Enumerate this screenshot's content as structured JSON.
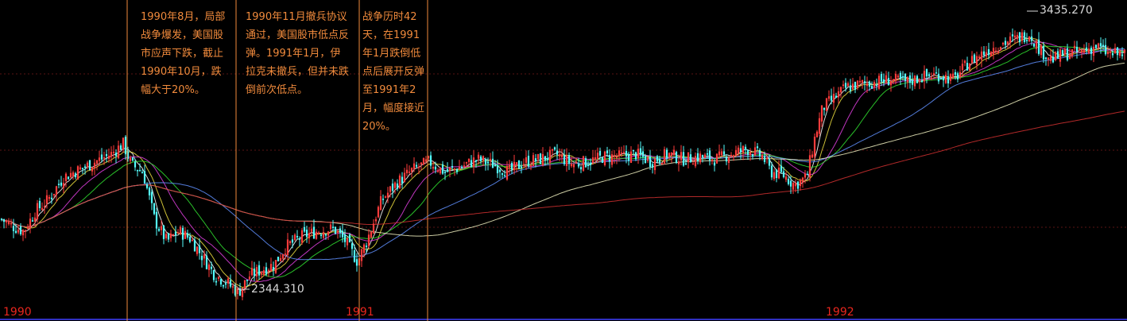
{
  "chart_data": {
    "type": "candlestick",
    "x_labels": [
      "1990",
      "1991",
      "1992"
    ],
    "annotations": [
      {
        "text": "1990年8月，局部战争爆发，美国股市应声下跌，截止1990年10月，跌幅大于20%。"
      },
      {
        "text": "1990年11月撤兵协议通过，美国股市低点反弹。1991年1月，伊拉克未撤兵，但并未跌倒前次低点。"
      },
      {
        "text": "战争历时42天，在1991年1月跌倒低点后展开反弹至1991年2月，幅度接近20%。"
      }
    ],
    "price_labels": {
      "low": "2344.310",
      "high": "3435.270"
    },
    "ylim": [
      2250,
      3500
    ],
    "grid": true,
    "path_points": [
      [
        0,
        2650
      ],
      [
        15,
        2620
      ],
      [
        30,
        2600
      ],
      [
        45,
        2680
      ],
      [
        60,
        2720
      ],
      [
        80,
        2810
      ],
      [
        100,
        2840
      ],
      [
        120,
        2870
      ],
      [
        140,
        2900
      ],
      [
        155,
        2940
      ],
      [
        165,
        2860
      ],
      [
        180,
        2830
      ],
      [
        195,
        2640
      ],
      [
        210,
        2560
      ],
      [
        225,
        2600
      ],
      [
        240,
        2570
      ],
      [
        255,
        2500
      ],
      [
        270,
        2430
      ],
      [
        285,
        2400
      ],
      [
        300,
        2360
      ],
      [
        315,
        2430
      ],
      [
        330,
        2450
      ],
      [
        345,
        2470
      ],
      [
        360,
        2540
      ],
      [
        380,
        2580
      ],
      [
        400,
        2600
      ],
      [
        420,
        2610
      ],
      [
        435,
        2560
      ],
      [
        450,
        2480
      ],
      [
        465,
        2590
      ],
      [
        480,
        2720
      ],
      [
        500,
        2790
      ],
      [
        520,
        2840
      ],
      [
        540,
        2870
      ],
      [
        560,
        2830
      ],
      [
        580,
        2850
      ],
      [
        600,
        2880
      ],
      [
        620,
        2860
      ],
      [
        640,
        2830
      ],
      [
        660,
        2870
      ],
      [
        680,
        2880
      ],
      [
        700,
        2900
      ],
      [
        720,
        2860
      ],
      [
        740,
        2870
      ],
      [
        760,
        2890
      ],
      [
        780,
        2890
      ],
      [
        800,
        2900
      ],
      [
        820,
        2870
      ],
      [
        840,
        2900
      ],
      [
        860,
        2880
      ],
      [
        880,
        2890
      ],
      [
        900,
        2880
      ],
      [
        920,
        2900
      ],
      [
        940,
        2920
      ],
      [
        960,
        2890
      ],
      [
        970,
        2830
      ],
      [
        985,
        2820
      ],
      [
        1000,
        2780
      ],
      [
        1015,
        2810
      ],
      [
        1025,
        2960
      ],
      [
        1035,
        3080
      ],
      [
        1050,
        3120
      ],
      [
        1065,
        3160
      ],
      [
        1080,
        3170
      ],
      [
        1100,
        3180
      ],
      [
        1120,
        3190
      ],
      [
        1140,
        3180
      ],
      [
        1160,
        3200
      ],
      [
        1180,
        3210
      ],
      [
        1200,
        3190
      ],
      [
        1220,
        3260
      ],
      [
        1240,
        3300
      ],
      [
        1260,
        3330
      ],
      [
        1280,
        3350
      ],
      [
        1295,
        3370
      ],
      [
        1310,
        3300
      ],
      [
        1325,
        3270
      ],
      [
        1340,
        3290
      ],
      [
        1360,
        3300
      ],
      [
        1380,
        3320
      ],
      [
        1395,
        3290
      ],
      [
        1418,
        3290
      ]
    ]
  }
}
